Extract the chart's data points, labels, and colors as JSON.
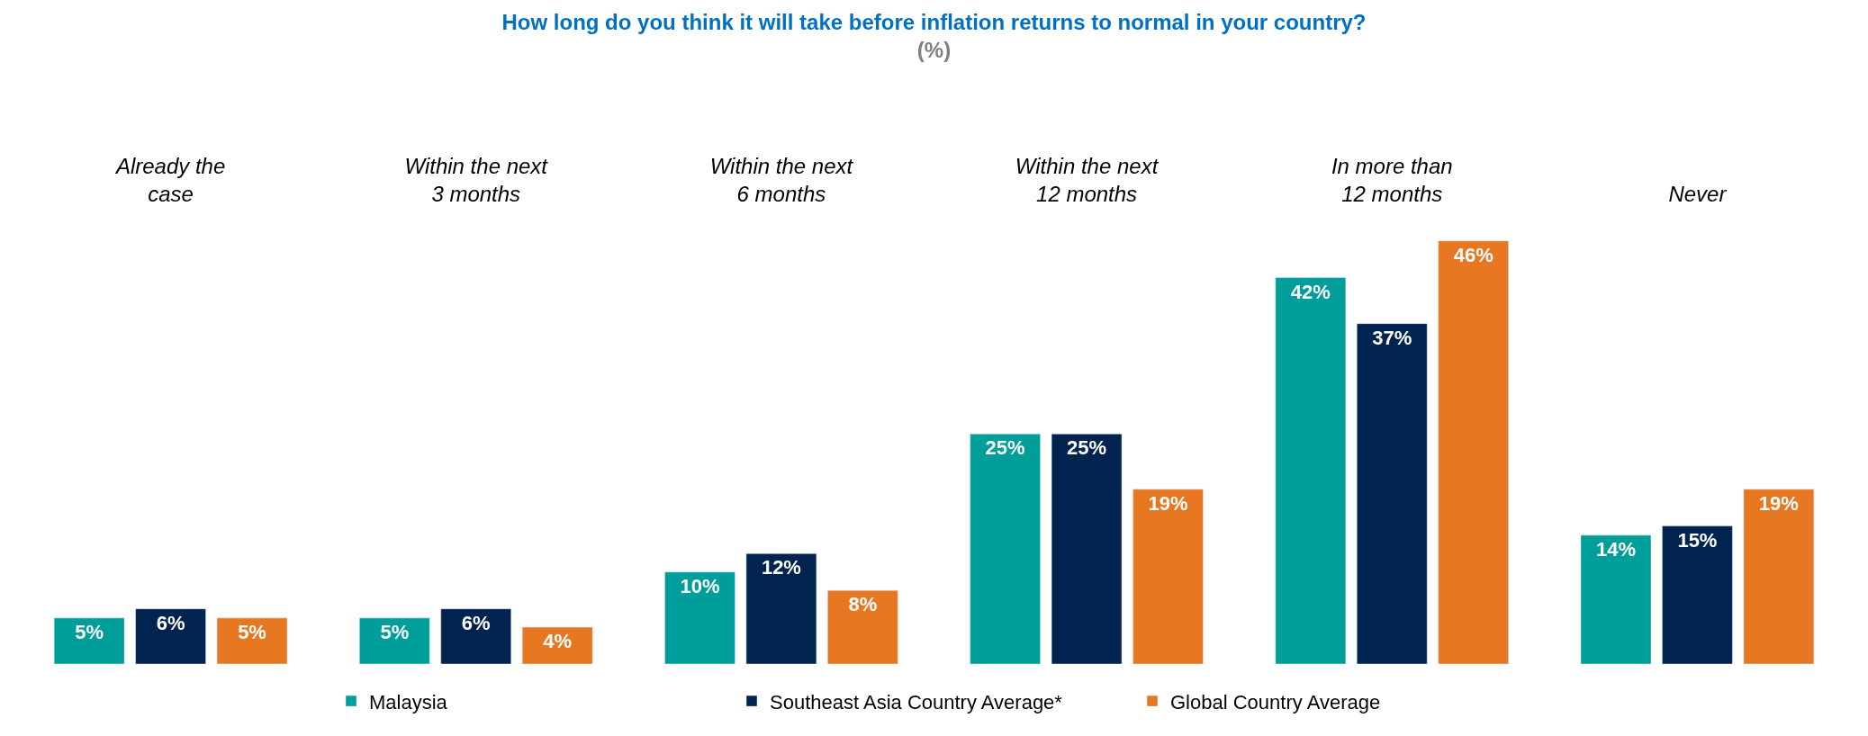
{
  "chart_data": {
    "type": "bar",
    "title": "How long do you think it will take before inflation returns to normal in your country?",
    "subtitle": "(%)",
    "categories": [
      "Already the\ncase",
      "Within the next\n3 months",
      "Within the next\n6 months",
      "Within the next\n12 months",
      "In more than\n12 months",
      "Never"
    ],
    "series": [
      {
        "name": "Malaysia",
        "color": "#009e9a",
        "values": [
          5,
          5,
          10,
          25,
          42,
          14
        ],
        "value_labels": [
          "5%",
          "5%",
          "10%",
          "25%",
          "42%",
          "14%"
        ]
      },
      {
        "name": "Southeast Asia Country Average*",
        "color": "#00234f",
        "values": [
          6,
          6,
          12,
          25,
          37,
          15
        ],
        "value_labels": [
          "6%",
          "6%",
          "12%",
          "25%",
          "37%",
          "15%"
        ]
      },
      {
        "name": "Global Country Average",
        "color": "#e87722",
        "values": [
          5,
          4,
          8,
          19,
          46,
          19
        ],
        "value_labels": [
          "5%",
          "4%",
          "8%",
          "19%",
          "46%",
          "19%"
        ]
      }
    ],
    "legend": "bottom"
  }
}
